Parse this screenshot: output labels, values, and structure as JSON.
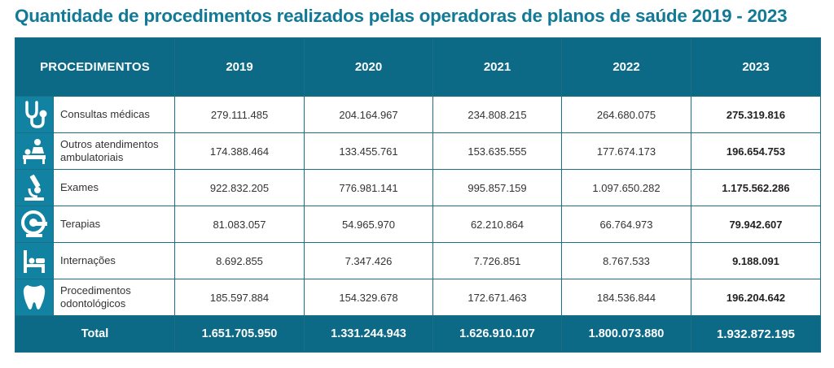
{
  "title": "Quantidade de procedimentos realizados pelas operadoras de planos de saúde 2019 - 2023",
  "colors": {
    "title": "#127a96",
    "header_bg": "#0d6a87",
    "icon_bg": "#1282a2",
    "border": "#1d6f86"
  },
  "chart_data": {
    "type": "table",
    "title": "Quantidade de procedimentos realizados pelas operadoras de planos de saúde 2019 - 2023",
    "header": {
      "procedures": "PROCEDIMENTOS",
      "years": [
        "2019",
        "2020",
        "2021",
        "2022",
        "2023"
      ]
    },
    "rows": [
      {
        "icon": "stethoscope-icon",
        "label": "Consultas médicas",
        "values": [
          "279.111.485",
          "204.164.967",
          "234.808.215",
          "264.680.075",
          "275.319.816"
        ]
      },
      {
        "icon": "patient-care-icon",
        "label": "Outros atendimentos ambulatoriais",
        "values": [
          "174.388.464",
          "133.455.761",
          "153.635.555",
          "177.674.173",
          "196.654.753"
        ]
      },
      {
        "icon": "microscope-icon",
        "label": "Exames",
        "values": [
          "922.832.205",
          "776.981.141",
          "995.857.159",
          "1.097.650.282",
          "1.175.562.286"
        ]
      },
      {
        "icon": "scanner-icon",
        "label": "Terapias",
        "values": [
          "81.083.057",
          "54.965.970",
          "62.210.864",
          "66.764.973",
          "79.942.607"
        ]
      },
      {
        "icon": "hospital-bed-icon",
        "label": "Internações",
        "values": [
          "8.692.855",
          "7.347.426",
          "7.726.851",
          "8.767.533",
          "9.188.091"
        ]
      },
      {
        "icon": "tooth-icon",
        "label": "Procedimentos odontológicos",
        "values": [
          "185.597.884",
          "154.329.678",
          "172.671.463",
          "184.536.844",
          "196.204.642"
        ]
      }
    ],
    "total": {
      "label": "Total",
      "values": [
        "1.651.705.950",
        "1.331.244.943",
        "1.626.910.107",
        "1.800.073.880",
        "1.932.872.195"
      ]
    }
  }
}
